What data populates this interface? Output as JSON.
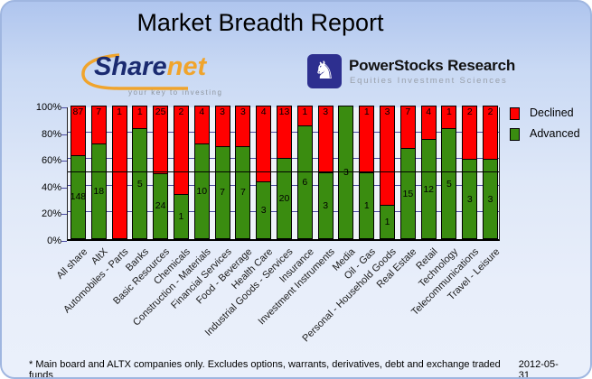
{
  "title": "Market Breadth Report",
  "logos": {
    "sharenet": {
      "word_share": "Share",
      "word_net": "net",
      "tagline": "your key to investing",
      "accent_color": "#f0a42c",
      "navy_color": "#1a2a70"
    },
    "powerstocks": {
      "icon": "knight-chess-piece",
      "icon_glyph": "♞",
      "name": "PowerStocks Research",
      "subtitle": "Equities Investment Sciences",
      "square_color": "#2d2f8f"
    }
  },
  "chart_data": {
    "type": "bar",
    "stacked": "percent",
    "categories": [
      "All share",
      "AltX",
      "Automobiles - Parts",
      "Banks",
      "Basic Resources",
      "Chemicals",
      "Construction - Materials",
      "Financial Services",
      "Food - Beverage",
      "Health Care",
      "Industrial Goods - Services",
      "Insurance",
      "Investment Instruments",
      "Media",
      "Oil - Gas",
      "Personal - Household Goods",
      "Real Estate",
      "Retail",
      "Technology",
      "Telecommunications",
      "Travel - Leisure"
    ],
    "series": [
      {
        "name": "Declined",
        "color": "#ff0000",
        "values": [
          87,
          7,
          1,
          1,
          25,
          2,
          4,
          3,
          3,
          4,
          13,
          1,
          3,
          0,
          1,
          3,
          7,
          4,
          1,
          2,
          2
        ]
      },
      {
        "name": "Advanced",
        "color": "#3a8c10",
        "values": [
          148,
          18,
          0,
          5,
          24,
          1,
          10,
          7,
          7,
          3,
          20,
          6,
          3,
          3,
          1,
          1,
          15,
          12,
          5,
          3,
          3
        ]
      }
    ],
    "ylabel": "",
    "ylim": [
      0,
      100
    ],
    "y_ticks": [
      "0%",
      "20%",
      "40%",
      "60%",
      "80%",
      "100%"
    ],
    "gridlines_pct": [
      20,
      40,
      60,
      80
    ],
    "midline_pct": 50,
    "legend_position": "right",
    "grid": true
  },
  "footer": {
    "note": "* Main board and ALTX companies only. Excludes options, warrants, derivatives, debt and exchange traded funds",
    "date": "2012-05-31"
  }
}
